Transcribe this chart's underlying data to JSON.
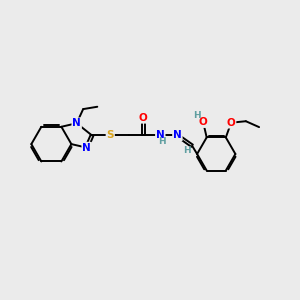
{
  "background_color": "#ebebeb",
  "fig_width": 3.0,
  "fig_height": 3.0,
  "dpi": 100,
  "atom_colors": {
    "N": "#0000FF",
    "O": "#FF0000",
    "S": "#DAA520",
    "C": "#000000",
    "H": "#5F9EA0"
  },
  "bond_color": "#000000",
  "bond_width": 1.4,
  "font_size_atom": 7.5,
  "font_size_small": 6.5
}
